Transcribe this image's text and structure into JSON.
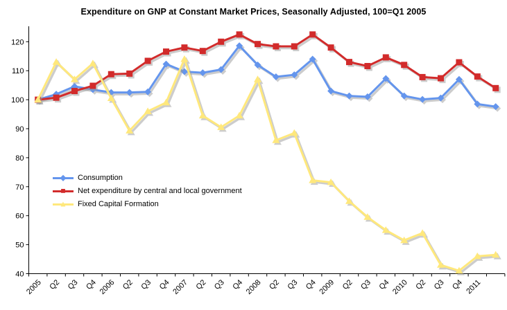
{
  "chart_data": {
    "type": "line",
    "title": "Expenditure on GNP at Constant Market Prices, Seasonally Adjusted, 100=Q1 2005",
    "categories": [
      "2005",
      "Q2",
      "Q3",
      "Q4",
      "2006",
      "Q2",
      "Q3",
      "Q4",
      "2007",
      "Q2",
      "Q3",
      "Q4",
      "2008",
      "Q2",
      "Q3",
      "Q4",
      "2009",
      "Q2",
      "Q3",
      "Q4",
      "2010",
      "Q2",
      "Q3",
      "Q4",
      "2011",
      ""
    ],
    "series": [
      {
        "name": "Consumption",
        "marker": "diamond",
        "color": "#6495ED",
        "values": [
          100,
          101.9,
          104.6,
          103.5,
          102.5,
          102.5,
          102.7,
          112.3,
          109.7,
          109.3,
          110.4,
          118.6,
          112.0,
          107.9,
          108.6,
          114.0,
          103.0,
          101.3,
          101.0,
          107.3,
          101.3,
          100.1,
          100.6,
          107.0,
          98.5,
          97.6
        ]
      },
      {
        "name": "Net expenditure by central and local government",
        "marker": "square",
        "color": "#D22B2B",
        "values": [
          100,
          100.7,
          103.0,
          104.8,
          108.8,
          109.0,
          113.4,
          116.6,
          118.0,
          116.8,
          120.0,
          122.5,
          119.2,
          118.4,
          118.4,
          122.5,
          118.0,
          113.0,
          111.6,
          114.6,
          112.0,
          107.8,
          107.4,
          112.9,
          108.0,
          104.0
        ]
      },
      {
        "name": "Fixed Capital Formation",
        "marker": "triangle",
        "color": "#FFE87C",
        "values": [
          100,
          113.0,
          107.0,
          112.5,
          100.5,
          89.3,
          96.0,
          99.0,
          114.0,
          94.5,
          90.5,
          94.5,
          107.0,
          86.0,
          88.5,
          72.2,
          71.5,
          65.0,
          59.5,
          55.0,
          51.5,
          54.0,
          43.0,
          41.0,
          46.0,
          46.5
        ]
      }
    ],
    "ylim": [
      40,
      120
    ],
    "yticks": [
      40,
      50,
      60,
      70,
      80,
      90,
      100,
      110,
      120
    ],
    "xlabel": "",
    "ylabel": "",
    "grid": false,
    "legend_position": "inside-left-middle",
    "shadow_color": "#9a9a9a",
    "axis_color": "#000000"
  }
}
